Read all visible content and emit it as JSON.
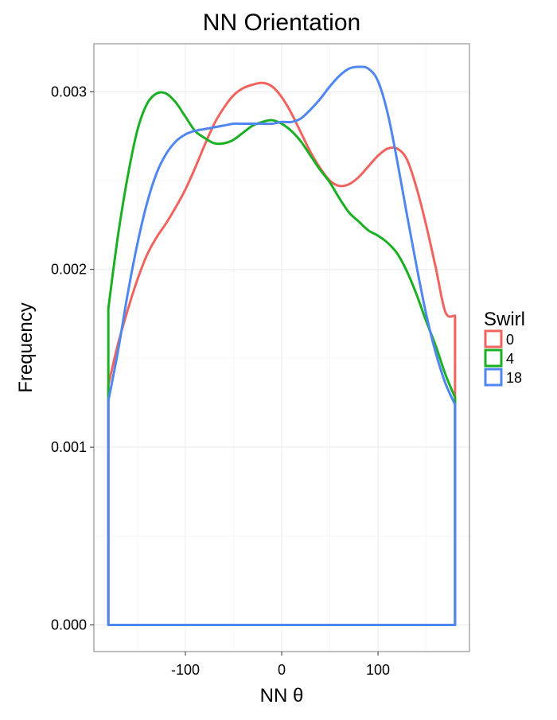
{
  "chart_data": {
    "type": "line",
    "title": "NN Orientation",
    "xlabel": "NN θ",
    "ylabel": "Frequency",
    "xlim": [
      -195,
      195
    ],
    "ylim": [
      -0.00015,
      0.00327
    ],
    "x_ticks": [
      -100,
      0,
      100
    ],
    "x_tick_labels": [
      "-100",
      "0",
      "100"
    ],
    "x_minor_ticks": [
      -150,
      -50,
      50,
      150
    ],
    "y_ticks": [
      0,
      0.001,
      0.002,
      0.003
    ],
    "y_tick_labels": [
      "0.000",
      "0.001",
      "0.002",
      "0.003"
    ],
    "y_minor_ticks": [
      0.0005,
      0.0015,
      0.0025
    ],
    "grid": true,
    "legend": {
      "title": "Swirl",
      "position": "right"
    },
    "series": [
      {
        "name": "0",
        "color": "#F0645F",
        "x": [
          -180,
          -170,
          -160,
          -150,
          -140,
          -130,
          -120,
          -110,
          -100,
          -90,
          -80,
          -70,
          -60,
          -50,
          -40,
          -30,
          -20,
          -10,
          0,
          10,
          20,
          30,
          40,
          50,
          60,
          70,
          80,
          90,
          100,
          110,
          120,
          130,
          140,
          150,
          160,
          170,
          180
        ],
        "values": [
          0.00135,
          0.00158,
          0.00177,
          0.00194,
          0.00208,
          0.00218,
          0.00226,
          0.00235,
          0.00245,
          0.00257,
          0.0027,
          0.00282,
          0.00291,
          0.00298,
          0.00302,
          0.00304,
          0.00305,
          0.00303,
          0.00297,
          0.00288,
          0.00277,
          0.00266,
          0.00257,
          0.0025,
          0.00247,
          0.00248,
          0.00252,
          0.00258,
          0.00264,
          0.00268,
          0.00268,
          0.00262,
          0.00246,
          0.00225,
          0.00201,
          0.00176,
          0.00174
        ]
      },
      {
        "name": "4",
        "color": "#1BB024",
        "x": [
          -180,
          -170,
          -160,
          -150,
          -140,
          -130,
          -120,
          -110,
          -100,
          -90,
          -80,
          -70,
          -60,
          -50,
          -40,
          -30,
          -20,
          -10,
          0,
          10,
          20,
          30,
          40,
          50,
          60,
          70,
          80,
          90,
          100,
          110,
          120,
          130,
          140,
          150,
          160,
          170,
          180
        ],
        "values": [
          0.00178,
          0.00219,
          0.00252,
          0.00278,
          0.00293,
          0.00299,
          0.00299,
          0.00294,
          0.00286,
          0.00278,
          0.00274,
          0.00271,
          0.00271,
          0.00273,
          0.00277,
          0.00281,
          0.00283,
          0.00284,
          0.00282,
          0.00278,
          0.00272,
          0.00264,
          0.00256,
          0.00249,
          0.0024,
          0.00232,
          0.00227,
          0.00222,
          0.00219,
          0.00215,
          0.00209,
          0.00199,
          0.00186,
          0.00171,
          0.00157,
          0.00141,
          0.00128
        ]
      },
      {
        "name": "18",
        "color": "#4F86F0",
        "x": [
          -180,
          -170,
          -160,
          -150,
          -140,
          -130,
          -120,
          -110,
          -100,
          -90,
          -80,
          -70,
          -60,
          -50,
          -40,
          -30,
          -20,
          -10,
          0,
          10,
          20,
          30,
          40,
          50,
          60,
          70,
          80,
          90,
          100,
          110,
          120,
          130,
          140,
          150,
          160,
          170,
          180
        ],
        "values": [
          0.00126,
          0.00154,
          0.00186,
          0.00214,
          0.00237,
          0.00254,
          0.00265,
          0.00272,
          0.00276,
          0.00278,
          0.00279,
          0.0028,
          0.00281,
          0.00282,
          0.00282,
          0.00282,
          0.00282,
          0.00282,
          0.00283,
          0.00283,
          0.00285,
          0.0029,
          0.00296,
          0.00303,
          0.00309,
          0.00313,
          0.00314,
          0.00313,
          0.00306,
          0.00288,
          0.00261,
          0.00231,
          0.00202,
          0.00175,
          0.00153,
          0.00136,
          0.00124
        ]
      }
    ]
  }
}
